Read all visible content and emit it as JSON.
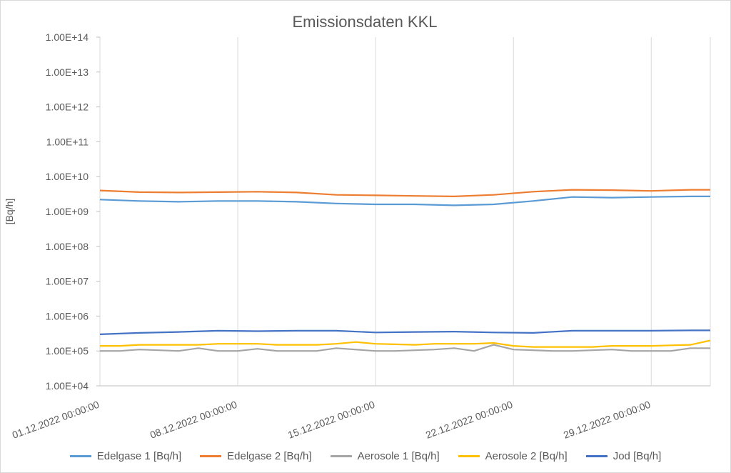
{
  "chart_data": {
    "type": "line",
    "title": "Emissionsdaten KKL",
    "ylabel": "[Bq/h]",
    "yscale": "log",
    "ylim": [
      10000,
      100000000000000
    ],
    "y_ticks": [
      {
        "value": 10000,
        "label": "1.00E+04"
      },
      {
        "value": 100000,
        "label": "1.00E+05"
      },
      {
        "value": 1000000,
        "label": "1.00E+06"
      },
      {
        "value": 10000000,
        "label": "1.00E+07"
      },
      {
        "value": 100000000,
        "label": "1.00E+08"
      },
      {
        "value": 1000000000,
        "label": "1.00E+09"
      },
      {
        "value": 10000000000,
        "label": "1.00E+10"
      },
      {
        "value": 100000000000,
        "label": "1.00E+11"
      },
      {
        "value": 1000000000000,
        "label": "1.00E+12"
      },
      {
        "value": 10000000000000,
        "label": "1.00E+13"
      },
      {
        "value": 100000000000000,
        "label": "1.00E+14"
      }
    ],
    "xlim": [
      "2022-12-01",
      "2023-01-01"
    ],
    "x_ticks": [
      {
        "value": "2022-12-01",
        "label": "01.12.2022 00:00:00"
      },
      {
        "value": "2022-12-08",
        "label": "08.12.2022 00:00:00"
      },
      {
        "value": "2022-12-15",
        "label": "15.12.2022 00:00:00"
      },
      {
        "value": "2022-12-22",
        "label": "22.12.2022 00:00:00"
      },
      {
        "value": "2022-12-29",
        "label": "29.12.2022 00:00:00"
      }
    ],
    "grid": "vertical",
    "legend": "bottom",
    "series": [
      {
        "name": "Edelgase 1 [Bq/h]",
        "color": "#5b9bd5",
        "x": [
          "2022-12-01",
          "2022-12-03",
          "2022-12-05",
          "2022-12-07",
          "2022-12-09",
          "2022-12-11",
          "2022-12-13",
          "2022-12-15",
          "2022-12-17",
          "2022-12-19",
          "2022-12-21",
          "2022-12-23",
          "2022-12-25",
          "2022-12-27",
          "2022-12-29",
          "2022-12-31",
          "2023-01-01"
        ],
        "values": [
          2200000000,
          2000000000,
          1900000000,
          2000000000,
          2000000000,
          1900000000,
          1700000000,
          1600000000,
          1600000000,
          1500000000,
          1600000000,
          2000000000,
          2600000000,
          2500000000,
          2600000000,
          2700000000,
          2700000000
        ]
      },
      {
        "name": "Edelgase 2 [Bq/h]",
        "color": "#ed7d31",
        "x": [
          "2022-12-01",
          "2022-12-03",
          "2022-12-05",
          "2022-12-07",
          "2022-12-09",
          "2022-12-11",
          "2022-12-13",
          "2022-12-15",
          "2022-12-17",
          "2022-12-19",
          "2022-12-21",
          "2022-12-23",
          "2022-12-25",
          "2022-12-27",
          "2022-12-29",
          "2022-12-31",
          "2023-01-01"
        ],
        "values": [
          4000000000,
          3600000000,
          3500000000,
          3600000000,
          3700000000,
          3500000000,
          3000000000,
          2900000000,
          2800000000,
          2700000000,
          3000000000,
          3700000000,
          4200000000,
          4100000000,
          3900000000,
          4200000000,
          4200000000
        ]
      },
      {
        "name": "Aerosole 1 [Bq/h]",
        "color": "#a5a5a5",
        "x": [
          "2022-12-01",
          "2022-12-02",
          "2022-12-03",
          "2022-12-05",
          "2022-12-06",
          "2022-12-07",
          "2022-12-08",
          "2022-12-09",
          "2022-12-10",
          "2022-12-12",
          "2022-12-13",
          "2022-12-15",
          "2022-12-16",
          "2022-12-18",
          "2022-12-19",
          "2022-12-20",
          "2022-12-21",
          "2022-12-22",
          "2022-12-24",
          "2022-12-25",
          "2022-12-27",
          "2022-12-28",
          "2022-12-30",
          "2022-12-31",
          "2023-01-01"
        ],
        "values": [
          100000,
          100000,
          110000,
          100000,
          120000,
          100000,
          100000,
          115000,
          100000,
          100000,
          120000,
          100000,
          100000,
          110000,
          120000,
          100000,
          150000,
          110000,
          100000,
          100000,
          110000,
          100000,
          100000,
          120000,
          120000
        ]
      },
      {
        "name": "Aerosole 2 [Bq/h]",
        "color": "#ffc000",
        "x": [
          "2022-12-01",
          "2022-12-02",
          "2022-12-03",
          "2022-12-04",
          "2022-12-05",
          "2022-12-06",
          "2022-12-07",
          "2022-12-08",
          "2022-12-09",
          "2022-12-10",
          "2022-12-11",
          "2022-12-12",
          "2022-12-13",
          "2022-12-14",
          "2022-12-15",
          "2022-12-16",
          "2022-12-17",
          "2022-12-18",
          "2022-12-19",
          "2022-12-20",
          "2022-12-21",
          "2022-12-22",
          "2022-12-23",
          "2022-12-24",
          "2022-12-25",
          "2022-12-26",
          "2022-12-27",
          "2022-12-28",
          "2022-12-29",
          "2022-12-30",
          "2022-12-31",
          "2023-01-01"
        ],
        "values": [
          140000,
          140000,
          150000,
          150000,
          150000,
          150000,
          160000,
          160000,
          160000,
          150000,
          150000,
          150000,
          160000,
          180000,
          160000,
          155000,
          150000,
          160000,
          160000,
          160000,
          170000,
          140000,
          130000,
          130000,
          130000,
          130000,
          140000,
          140000,
          140000,
          145000,
          150000,
          200000
        ]
      },
      {
        "name": "Jod [Bq/h]",
        "color": "#4472c4",
        "x": [
          "2022-12-01",
          "2022-12-03",
          "2022-12-05",
          "2022-12-07",
          "2022-12-09",
          "2022-12-11",
          "2022-12-13",
          "2022-12-15",
          "2022-12-17",
          "2022-12-19",
          "2022-12-21",
          "2022-12-23",
          "2022-12-25",
          "2022-12-27",
          "2022-12-29",
          "2022-12-31",
          "2023-01-01"
        ],
        "values": [
          300000,
          330000,
          350000,
          380000,
          370000,
          380000,
          380000,
          340000,
          350000,
          360000,
          340000,
          330000,
          380000,
          380000,
          380000,
          390000,
          390000
        ]
      }
    ]
  }
}
